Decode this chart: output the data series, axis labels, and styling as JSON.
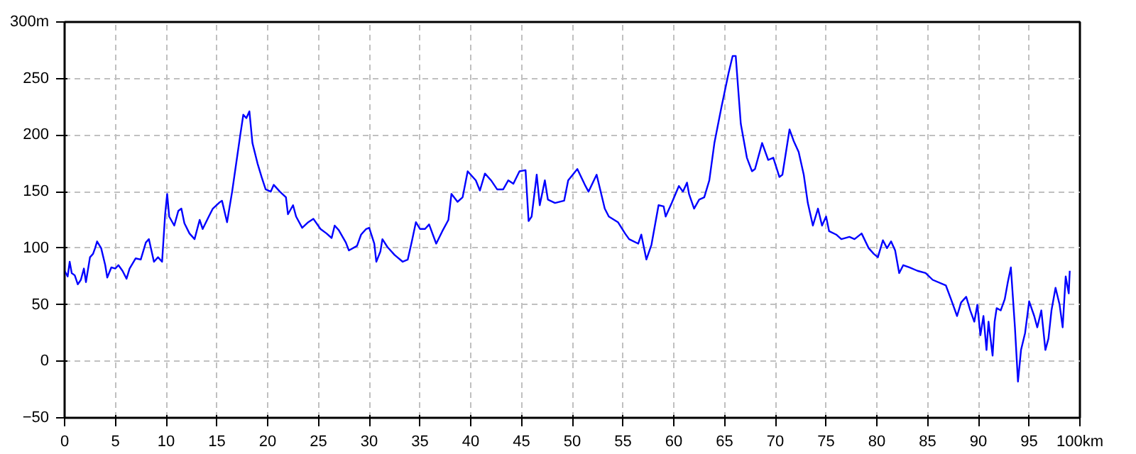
{
  "chart_data": {
    "type": "line",
    "xlim": [
      0,
      100
    ],
    "ylim": [
      -50,
      300
    ],
    "xticks": [
      0,
      5,
      10,
      15,
      20,
      25,
      30,
      35,
      40,
      45,
      50,
      55,
      60,
      65,
      70,
      75,
      80,
      85,
      90,
      95,
      {
        "value": 100,
        "label": "100km"
      }
    ],
    "yticks": [
      -50,
      0,
      50,
      100,
      150,
      200,
      250,
      {
        "value": 300,
        "label": "300m"
      }
    ],
    "grid": true,
    "line_style": "solid",
    "marker": "none",
    "series": [
      {
        "color": "#0000ff",
        "x": [
          0,
          0.3,
          0.5,
          0.7,
          1,
          1.3,
          1.6,
          1.9,
          2.1,
          2.5,
          2.8,
          3.0,
          3.2,
          3.6,
          4.0,
          4.2,
          4.6,
          5.0,
          5.3,
          5.7,
          6.1,
          6.4,
          7.0,
          7.5,
          8.0,
          8.3,
          8.8,
          9.2,
          9.6,
          9.9,
          10.1,
          10.3,
          10.8,
          11.2,
          11.5,
          11.8,
          12.3,
          12.8,
          13.3,
          13.6,
          14.2,
          14.6,
          15.2,
          15.5,
          16.0,
          16.5,
          16.9,
          17.3,
          17.6,
          17.9,
          18.2,
          18.5,
          19.0,
          19.4,
          19.8,
          20.3,
          20.6,
          21.2,
          21.8,
          22.0,
          22.5,
          22.8,
          23.4,
          24.0,
          24.5,
          25.2,
          25.8,
          26.3,
          26.6,
          27.0,
          27.7,
          28.0,
          28.8,
          29.2,
          29.7,
          30.0,
          30.5,
          30.7,
          31.1,
          31.3,
          31.8,
          32.5,
          33.3,
          33.8,
          34.2,
          34.6,
          35.0,
          35.5,
          35.9,
          36.6,
          37.2,
          37.8,
          38.1,
          38.7,
          39.2,
          39.7,
          40.5,
          40.9,
          41.4,
          42.0,
          42.6,
          43.2,
          43.7,
          44.2,
          44.8,
          45.4,
          45.7,
          46.0,
          46.5,
          46.8,
          47.3,
          47.6,
          48.3,
          49.2,
          49.6,
          50.5,
          51.3,
          51.6,
          52.4,
          53.2,
          53.6,
          54.5,
          55.2,
          55.6,
          56.5,
          56.8,
          57.3,
          57.8,
          58.5,
          59.0,
          59.2,
          59.8,
          60.5,
          60.9,
          61.3,
          61.5,
          62.0,
          62.5,
          63.0,
          63.5,
          64.0,
          64.7,
          65.4,
          65.8,
          66.1,
          66.6,
          67.2,
          67.7,
          68.0,
          68.7,
          69.3,
          69.8,
          70.4,
          70.7,
          71.4,
          71.8,
          72.3,
          72.8,
          73.2,
          73.7,
          74.2,
          74.6,
          75.0,
          75.3,
          76.0,
          76.5,
          77.3,
          77.8,
          78.5,
          79.2,
          79.7,
          80.1,
          80.6,
          81.0,
          81.4,
          81.8,
          82.2,
          82.6,
          83.2,
          84.0,
          84.8,
          85.5,
          86.8,
          87.3,
          87.9,
          88.3,
          88.8,
          89.2,
          89.6,
          89.9,
          90.2,
          90.5,
          90.8,
          91.0,
          91.4,
          91.6,
          91.8,
          92.2,
          92.6,
          92.9,
          93.2,
          93.6,
          93.9,
          94.2,
          94.6,
          95.0,
          95.5,
          95.8,
          96.2,
          96.6,
          96.9,
          97.2,
          97.6,
          98.0,
          98.3,
          98.6,
          98.9,
          99.0
        ],
        "values": [
          80,
          75,
          88,
          78,
          76,
          68,
          72,
          82,
          70,
          92,
          95,
          100,
          106,
          100,
          85,
          74,
          83,
          82,
          85,
          80,
          73,
          82,
          91,
          90,
          105,
          108,
          88,
          92,
          88,
          130,
          148,
          128,
          120,
          133,
          135,
          122,
          113,
          108,
          125,
          117,
          128,
          135,
          140,
          142,
          123,
          150,
          175,
          200,
          218,
          215,
          221,
          193,
          175,
          163,
          152,
          150,
          156,
          150,
          145,
          130,
          138,
          128,
          118,
          123,
          126,
          117,
          113,
          109,
          120,
          116,
          105,
          98,
          102,
          112,
          117,
          118,
          104,
          88,
          97,
          108,
          101,
          94,
          88,
          90,
          106,
          123,
          117,
          117,
          121,
          104,
          115,
          125,
          148,
          141,
          145,
          168,
          160,
          151,
          166,
          160,
          152,
          152,
          160,
          157,
          168,
          169,
          124,
          128,
          165,
          138,
          160,
          143,
          140,
          142,
          160,
          170,
          155,
          150,
          165,
          135,
          128,
          123,
          113,
          108,
          104,
          112,
          90,
          103,
          138,
          137,
          128,
          140,
          155,
          150,
          158,
          148,
          135,
          143,
          145,
          160,
          193,
          225,
          255,
          270,
          270,
          210,
          180,
          168,
          170,
          193,
          178,
          180,
          163,
          165,
          205,
          195,
          185,
          165,
          140,
          120,
          135,
          120,
          128,
          115,
          112,
          108,
          110,
          108,
          113,
          100,
          95,
          92,
          107,
          100,
          106,
          98,
          78,
          85,
          83,
          80,
          78,
          72,
          67,
          55,
          40,
          52,
          57,
          45,
          35,
          50,
          23,
          40,
          10,
          35,
          5,
          35,
          47,
          45,
          55,
          70,
          83,
          30,
          -18,
          10,
          25,
          53,
          40,
          30,
          45,
          10,
          20,
          45,
          65,
          50,
          30,
          75,
          60,
          80
        ]
      }
    ]
  }
}
